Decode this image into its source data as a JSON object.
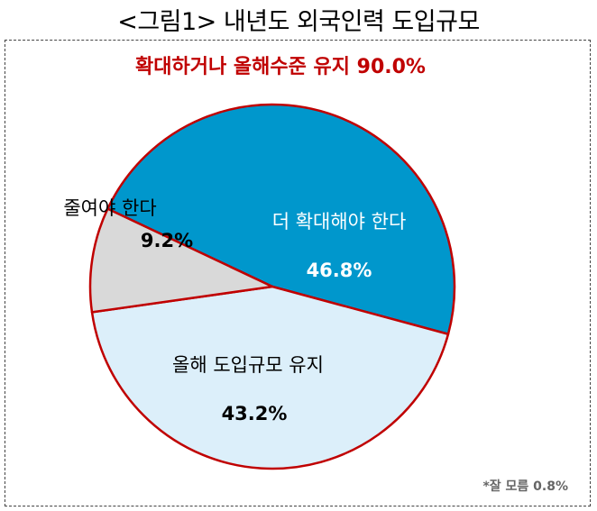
{
  "title": "<그림1> 내년도 외국인력 도입규모",
  "headline": "확대하거나 올해수준 유지 90.0%",
  "footnote": "*잘 모름 0.8%",
  "colors": {
    "expand": "#0097CC",
    "maintain": "#DCEFFA",
    "reduce": "#D9D9D9",
    "outline": "#C00000",
    "headline": "#C00000"
  },
  "chart_data": {
    "type": "pie",
    "title": "<그림1> 내년도 외국인력 도입규모",
    "slices": [
      {
        "label": "더 확대해야 한다",
        "value": 46.8,
        "value_label": "46.8%",
        "color": "#0097CC",
        "text_color": "#ffffff"
      },
      {
        "label": "올해 도입규모 유지",
        "value": 43.2,
        "value_label": "43.2%",
        "color": "#DCEFFA",
        "text_color": "#000000"
      },
      {
        "label": "줄여야 한다",
        "value": 9.2,
        "value_label": "9.2%",
        "color": "#D9D9D9",
        "text_color": "#000000"
      }
    ],
    "annotation": "확대하거나 올해수준 유지 90.0%",
    "footnote": "*잘 모름 0.8%"
  }
}
